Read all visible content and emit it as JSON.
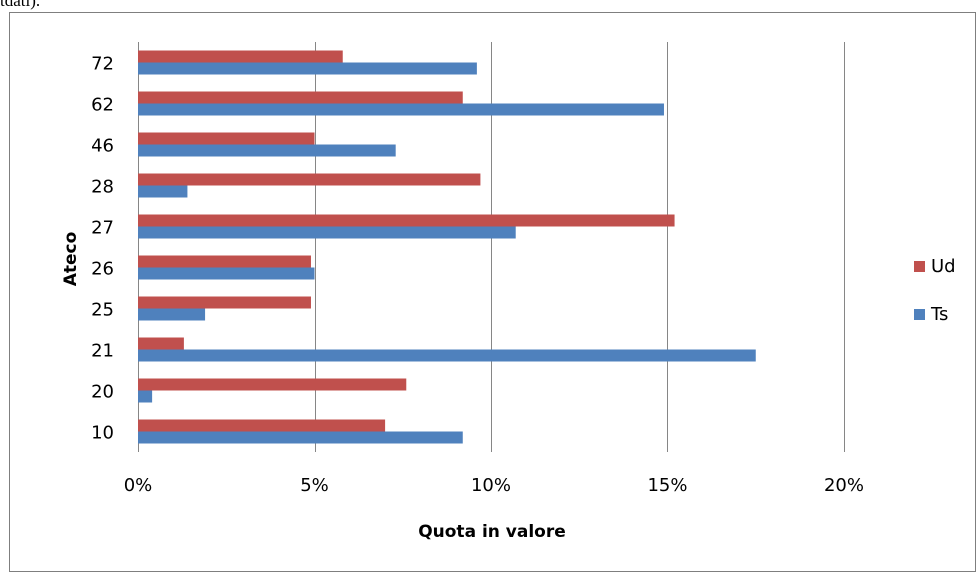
{
  "page": {
    "top_text": "tdati)."
  },
  "colors": {
    "series_Ud": "#c0504d",
    "series_Ts": "#4f81bd",
    "gridline": "#868686",
    "frame": "#7f7f7f"
  },
  "chart_data": {
    "type": "bar",
    "orientation": "horizontal",
    "categories": [
      "10",
      "20",
      "21",
      "25",
      "26",
      "27",
      "28",
      "46",
      "62",
      "72"
    ],
    "series": [
      {
        "name": "Ud",
        "values": [
          0.07,
          0.076,
          0.013,
          0.049,
          0.049,
          0.152,
          0.097,
          0.05,
          0.092,
          0.058
        ]
      },
      {
        "name": "Ts",
        "values": [
          0.092,
          0.004,
          0.175,
          0.019,
          0.05,
          0.107,
          0.014,
          0.073,
          0.149,
          0.096
        ]
      }
    ],
    "xlim": [
      0,
      0.2
    ],
    "xticks": [
      0,
      0.05,
      0.1,
      0.15,
      0.2
    ],
    "xtick_labels": [
      "0%",
      "5%",
      "10%",
      "15%",
      "20%"
    ],
    "xlabel": "Quota in valore",
    "ylabel": "Ateco",
    "grid": "vertical",
    "legend": {
      "placement": "right",
      "order": [
        "Ud",
        "Ts"
      ]
    }
  }
}
